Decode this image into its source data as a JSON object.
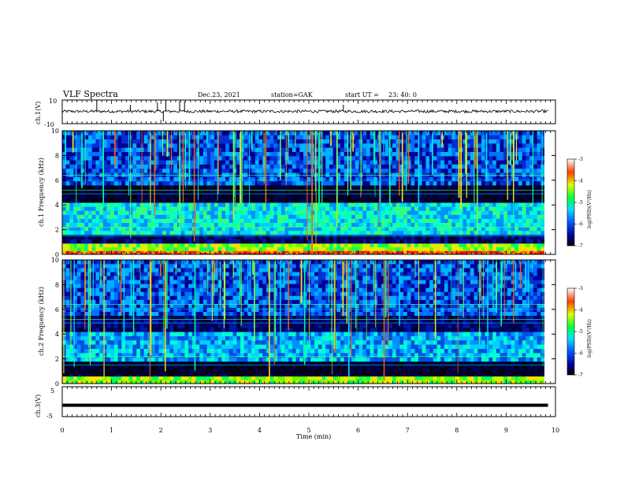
{
  "header": {
    "title": "VLF Spectra",
    "date": "Dec.23, 2021",
    "station": "station=GAK",
    "start_label": "start  UT  =",
    "start_time": "23: 40: 0"
  },
  "chart_data": [
    {
      "type": "line",
      "panel": "ch1-waveform",
      "ylabel": "ch.1(V)",
      "ylim": [
        -10,
        10
      ],
      "yticks": [
        "10",
        "-10"
      ],
      "x_range_min": [
        0,
        9.85
      ],
      "baseline_v": 0.4,
      "noise_v": 1.2,
      "spikes": [
        {
          "x": 0.7,
          "y": 10
        },
        {
          "x": 1.38,
          "y": 6
        },
        {
          "x": 1.93,
          "y": 8
        },
        {
          "x": 2.1,
          "y": 10
        },
        {
          "x": 2.38,
          "y": 9
        },
        {
          "x": 2.48,
          "y": 9
        },
        {
          "x": 2.05,
          "y": -8
        },
        {
          "x": 5.7,
          "y": 6
        }
      ]
    },
    {
      "type": "heatmap",
      "panel": "ch1-spectrogram",
      "ylabel": "ch.1  Frequency (kHz)",
      "ylim": [
        0,
        10
      ],
      "yticks": [
        "0",
        "2",
        "4",
        "6",
        "8",
        "10"
      ],
      "colorbar": {
        "label": "log(PSD)(V²/Hz)",
        "range": [
          -7,
          -3
        ],
        "ticks": [
          "-3",
          "-4",
          "-5",
          "-6",
          "-7"
        ]
      },
      "bands_khz": [
        {
          "f": [
            0,
            0.3
          ],
          "level": "orange-red"
        },
        {
          "f": [
            0.3,
            0.9
          ],
          "level": "yellow-green"
        },
        {
          "f": [
            0.9,
            1.6
          ],
          "level": "dark-blue"
        },
        {
          "f": [
            1.6,
            4.2
          ],
          "level": "cyan-green"
        },
        {
          "f": [
            4.2,
            5.6
          ],
          "level": "dark"
        },
        {
          "f": [
            5.6,
            10
          ],
          "level": "blue-cyan"
        }
      ]
    },
    {
      "type": "heatmap",
      "panel": "ch2-spectrogram",
      "ylabel": "ch.2  Frequency (kHz)",
      "ylim": [
        0,
        10
      ],
      "yticks": [
        "0",
        "2",
        "4",
        "6",
        "8",
        "10"
      ],
      "colorbar": {
        "label": "log(PSD)(V²/Hz)",
        "range": [
          -7,
          -3
        ],
        "ticks": [
          "-3",
          "-4",
          "-5",
          "-6",
          "-7"
        ]
      },
      "bands_khz": [
        {
          "f": [
            0,
            0.6
          ],
          "level": "yellow-green"
        },
        {
          "f": [
            0.6,
            1.8
          ],
          "level": "dark"
        },
        {
          "f": [
            1.8,
            4.2
          ],
          "level": "cyan-blue"
        },
        {
          "f": [
            4.2,
            5.5
          ],
          "level": "dark-blue"
        },
        {
          "f": [
            5.5,
            10
          ],
          "level": "blue-cyan"
        }
      ]
    },
    {
      "type": "line",
      "panel": "ch3-waveform",
      "ylabel": "ch.3(V)",
      "ylim": [
        -5,
        5
      ],
      "yticks": [
        "5",
        "-5"
      ],
      "x_range_min": [
        0,
        9.85
      ],
      "level_v": -1.2
    }
  ],
  "xaxis": {
    "label": "Time (min)",
    "range": [
      0,
      10
    ],
    "ticks": [
      "0",
      "1",
      "2",
      "3",
      "4",
      "5",
      "6",
      "7",
      "8",
      "9",
      "10"
    ]
  },
  "colors": {
    "trace": "#000000",
    "spectrogram_bg": "#00006a"
  }
}
